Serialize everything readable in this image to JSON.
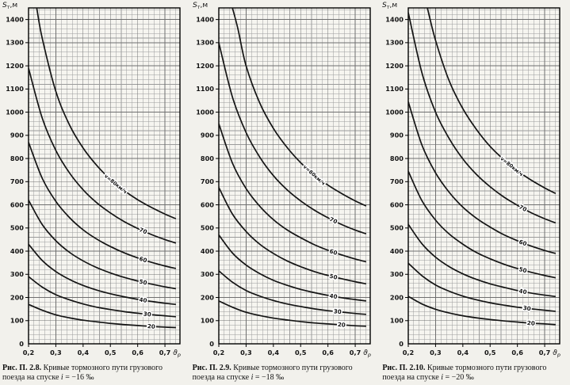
{
  "figure": {
    "background": "#f2f1ec",
    "plot_bg": "#f6f5f0",
    "ink": "#141414",
    "grid_minor": "#9b9b9b",
    "grid_major": "#6f6f6f",
    "border": "#000000"
  },
  "chart_data": [
    {
      "type": "line",
      "title": "",
      "ylabel": "Sт,м",
      "ylabel_parts": {
        "main": "S",
        "sub": "т",
        "rest": ",м"
      },
      "xlabel": "ϑр",
      "xlabel_parts": {
        "main": "ϑ",
        "sub": "р"
      },
      "xlim": [
        0.2,
        0.755
      ],
      "ylim": [
        0,
        1450
      ],
      "grid": {
        "minor_x": 0.02,
        "minor_y": 20
      },
      "xticks": [
        {
          "v": 0.2,
          "label": "0,2"
        },
        {
          "v": 0.3,
          "label": "0,3"
        },
        {
          "v": 0.4,
          "label": "0,4"
        },
        {
          "v": 0.5,
          "label": "0,5"
        },
        {
          "v": 0.6,
          "label": "0,6"
        },
        {
          "v": 0.7,
          "label": "0,7"
        }
      ],
      "yticks": [
        0,
        100,
        200,
        300,
        400,
        500,
        600,
        700,
        800,
        900,
        1000,
        1100,
        1200,
        1300,
        1400
      ],
      "series": [
        {
          "name": "v-80",
          "label": "v=80км/ч",
          "label_x": 0.52,
          "x": [
            0.23,
            0.25,
            0.3,
            0.35,
            0.4,
            0.45,
            0.5,
            0.55,
            0.6,
            0.65,
            0.7,
            0.74
          ],
          "y": [
            1450,
            1320,
            1090,
            945,
            845,
            770,
            710,
            662,
            622,
            589,
            560,
            540
          ]
        },
        {
          "name": "v-70",
          "label": "70",
          "label_x": 0.62,
          "x": [
            0.2,
            0.25,
            0.3,
            0.35,
            0.4,
            0.45,
            0.5,
            0.55,
            0.6,
            0.65,
            0.7,
            0.74
          ],
          "y": [
            1190,
            975,
            835,
            738,
            665,
            609,
            565,
            528,
            498,
            472,
            450,
            435
          ]
        },
        {
          "name": "v-60",
          "label": "60",
          "label_x": 0.62,
          "x": [
            0.2,
            0.25,
            0.3,
            0.35,
            0.4,
            0.45,
            0.5,
            0.55,
            0.6,
            0.65,
            0.7,
            0.74
          ],
          "y": [
            870,
            715,
            615,
            545,
            492,
            452,
            420,
            393,
            371,
            352,
            336,
            325
          ]
        },
        {
          "name": "v-50",
          "label": "50",
          "label_x": 0.62,
          "x": [
            0.2,
            0.25,
            0.3,
            0.35,
            0.4,
            0.45,
            0.5,
            0.55,
            0.6,
            0.65,
            0.7,
            0.74
          ],
          "y": [
            620,
            515,
            445,
            395,
            358,
            329,
            306,
            287,
            271,
            258,
            246,
            238
          ]
        },
        {
          "name": "v-40",
          "label": "40",
          "label_x": 0.62,
          "x": [
            0.2,
            0.25,
            0.3,
            0.35,
            0.4,
            0.45,
            0.5,
            0.55,
            0.6,
            0.65,
            0.7,
            0.74
          ],
          "y": [
            430,
            360,
            312,
            278,
            252,
            232,
            216,
            203,
            192,
            183,
            175,
            170
          ]
        },
        {
          "name": "v-30",
          "label": "30",
          "label_x": 0.635,
          "x": [
            0.2,
            0.25,
            0.3,
            0.35,
            0.4,
            0.45,
            0.5,
            0.55,
            0.6,
            0.65,
            0.7,
            0.74
          ],
          "y": [
            290,
            245,
            212,
            190,
            172,
            158,
            148,
            139,
            132,
            126,
            121,
            117
          ]
        },
        {
          "name": "v-20",
          "label": "20",
          "label_x": 0.65,
          "x": [
            0.2,
            0.25,
            0.3,
            0.35,
            0.4,
            0.45,
            0.5,
            0.55,
            0.6,
            0.65,
            0.7,
            0.74
          ],
          "y": [
            170,
            145,
            125,
            112,
            102,
            95,
            88,
            83,
            79,
            75,
            72,
            70
          ]
        }
      ],
      "caption": {
        "label": "Рис. П. 2.8.",
        "text": "Кривые тормозного пути грузового поезда на спуске",
        "var": "i",
        "value": "= −16 ‰"
      }
    },
    {
      "type": "line",
      "title": "",
      "ylabel": "Sт,м",
      "ylabel_parts": {
        "main": "S",
        "sub": "т",
        "rest": ",м"
      },
      "xlabel": "ϑр",
      "xlabel_parts": {
        "main": "ϑ",
        "sub": "р"
      },
      "xlim": [
        0.2,
        0.755
      ],
      "ylim": [
        0,
        1450
      ],
      "grid": {
        "minor_x": 0.02,
        "minor_y": 20
      },
      "xticks": [
        {
          "v": 0.2,
          "label": "0,2"
        },
        {
          "v": 0.3,
          "label": "0,3"
        },
        {
          "v": 0.4,
          "label": "0,4"
        },
        {
          "v": 0.5,
          "label": "0,5"
        },
        {
          "v": 0.6,
          "label": "0,6"
        },
        {
          "v": 0.7,
          "label": "0,7"
        }
      ],
      "yticks": [
        0,
        100,
        200,
        300,
        400,
        500,
        600,
        700,
        800,
        900,
        1000,
        1100,
        1200,
        1300,
        1400
      ],
      "series": [
        {
          "name": "v-80",
          "label": "v=80км/ч",
          "label_x": 0.55,
          "x": [
            0.25,
            0.27,
            0.3,
            0.35,
            0.4,
            0.45,
            0.5,
            0.55,
            0.6,
            0.65,
            0.7,
            0.74
          ],
          "y": [
            1450,
            1360,
            1200,
            1040,
            930,
            848,
            782,
            729,
            685,
            649,
            617,
            595
          ]
        },
        {
          "name": "v-70",
          "label": "70",
          "label_x": 0.62,
          "x": [
            0.2,
            0.25,
            0.3,
            0.35,
            0.4,
            0.45,
            0.5,
            0.55,
            0.6,
            0.65,
            0.7,
            0.74
          ],
          "y": [
            1300,
            1065,
            912,
            806,
            726,
            665,
            617,
            577,
            544,
            515,
            491,
            475
          ]
        },
        {
          "name": "v-60",
          "label": "60",
          "label_x": 0.62,
          "x": [
            0.2,
            0.25,
            0.3,
            0.35,
            0.4,
            0.45,
            0.5,
            0.55,
            0.6,
            0.65,
            0.7,
            0.74
          ],
          "y": [
            950,
            780,
            670,
            594,
            536,
            492,
            458,
            428,
            404,
            384,
            366,
            354
          ]
        },
        {
          "name": "v-50",
          "label": "50",
          "label_x": 0.62,
          "x": [
            0.2,
            0.25,
            0.3,
            0.35,
            0.4,
            0.45,
            0.5,
            0.55,
            0.6,
            0.65,
            0.7,
            0.74
          ],
          "y": [
            675,
            560,
            485,
            430,
            390,
            358,
            333,
            312,
            295,
            281,
            268,
            259
          ]
        },
        {
          "name": "v-40",
          "label": "40",
          "label_x": 0.62,
          "x": [
            0.2,
            0.25,
            0.3,
            0.35,
            0.4,
            0.45,
            0.5,
            0.55,
            0.6,
            0.65,
            0.7,
            0.74
          ],
          "y": [
            470,
            392,
            340,
            303,
            274,
            253,
            235,
            221,
            209,
            199,
            191,
            185
          ]
        },
        {
          "name": "v-30",
          "label": "30",
          "label_x": 0.635,
          "x": [
            0.2,
            0.25,
            0.3,
            0.35,
            0.4,
            0.45,
            0.5,
            0.55,
            0.6,
            0.65,
            0.7,
            0.74
          ],
          "y": [
            315,
            266,
            230,
            206,
            187,
            172,
            161,
            151,
            143,
            137,
            131,
            127
          ]
        },
        {
          "name": "v-20",
          "label": "20",
          "label_x": 0.65,
          "x": [
            0.2,
            0.25,
            0.3,
            0.35,
            0.4,
            0.45,
            0.5,
            0.55,
            0.6,
            0.65,
            0.7,
            0.74
          ],
          "y": [
            185,
            158,
            136,
            122,
            111,
            103,
            96,
            90,
            86,
            82,
            78,
            76
          ]
        }
      ],
      "caption": {
        "label": "Рис. П. 2.9.",
        "text": "Кривые тормозного пути грузового поезда на спуске",
        "var": "i",
        "value": "= −18 ‰"
      }
    },
    {
      "type": "line",
      "title": "",
      "ylabel": "Sт,м",
      "ylabel_parts": {
        "main": "S",
        "sub": "т",
        "rest": ",м"
      },
      "xlabel": "ϑр",
      "xlabel_parts": {
        "main": "ϑ",
        "sub": "р"
      },
      "xlim": [
        0.2,
        0.755
      ],
      "ylim": [
        0,
        1450
      ],
      "grid": {
        "minor_x": 0.02,
        "minor_y": 20
      },
      "xticks": [
        {
          "v": 0.2,
          "label": "0,2"
        },
        {
          "v": 0.3,
          "label": "0,3"
        },
        {
          "v": 0.4,
          "label": "0,4"
        },
        {
          "v": 0.5,
          "label": "0,5"
        },
        {
          "v": 0.6,
          "label": "0,6"
        },
        {
          "v": 0.7,
          "label": "0,7"
        }
      ],
      "yticks": [
        0,
        100,
        200,
        300,
        400,
        500,
        600,
        700,
        800,
        900,
        1000,
        1100,
        1200,
        1300,
        1400
      ],
      "series": [
        {
          "name": "v-80",
          "label": "v=80км/ч",
          "label_x": 0.58,
          "x": [
            0.27,
            0.3,
            0.35,
            0.4,
            0.45,
            0.5,
            0.55,
            0.6,
            0.65,
            0.7,
            0.74
          ],
          "y": [
            1450,
            1310,
            1135,
            1015,
            925,
            852,
            795,
            747,
            707,
            673,
            649
          ]
        },
        {
          "name": "v-70",
          "label": "70",
          "label_x": 0.62,
          "x": [
            0.2,
            0.25,
            0.3,
            0.35,
            0.4,
            0.45,
            0.5,
            0.55,
            0.6,
            0.65,
            0.7,
            0.74
          ],
          "y": [
            1430,
            1170,
            1000,
            886,
            798,
            731,
            678,
            634,
            598,
            566,
            540,
            522
          ]
        },
        {
          "name": "v-60",
          "label": "60",
          "label_x": 0.62,
          "x": [
            0.2,
            0.25,
            0.3,
            0.35,
            0.4,
            0.45,
            0.5,
            0.55,
            0.6,
            0.65,
            0.7,
            0.74
          ],
          "y": [
            1045,
            858,
            738,
            654,
            590,
            542,
            504,
            471,
            445,
            422,
            403,
            390
          ]
        },
        {
          "name": "v-50",
          "label": "50",
          "label_x": 0.62,
          "x": [
            0.2,
            0.25,
            0.3,
            0.35,
            0.4,
            0.45,
            0.5,
            0.55,
            0.6,
            0.65,
            0.7,
            0.74
          ],
          "y": [
            745,
            618,
            534,
            474,
            430,
            394,
            367,
            344,
            325,
            309,
            295,
            285
          ]
        },
        {
          "name": "v-40",
          "label": "40",
          "label_x": 0.62,
          "x": [
            0.2,
            0.25,
            0.3,
            0.35,
            0.4,
            0.45,
            0.5,
            0.55,
            0.6,
            0.65,
            0.7,
            0.74
          ],
          "y": [
            516,
            432,
            374,
            333,
            302,
            278,
            259,
            244,
            230,
            219,
            210,
            204
          ]
        },
        {
          "name": "v-30",
          "label": "30",
          "label_x": 0.635,
          "x": [
            0.2,
            0.25,
            0.3,
            0.35,
            0.4,
            0.45,
            0.5,
            0.55,
            0.6,
            0.65,
            0.7,
            0.74
          ],
          "y": [
            348,
            294,
            254,
            227,
            206,
            190,
            177,
            167,
            158,
            151,
            145,
            140
          ]
        },
        {
          "name": "v-20",
          "label": "20",
          "label_x": 0.65,
          "x": [
            0.2,
            0.25,
            0.3,
            0.35,
            0.4,
            0.45,
            0.5,
            0.55,
            0.6,
            0.65,
            0.7,
            0.74
          ],
          "y": [
            205,
            172,
            149,
            133,
            121,
            112,
            105,
            99,
            94,
            89,
            86,
            83
          ]
        }
      ],
      "caption": {
        "label": "Рис. П. 2.10.",
        "text": "Кривые тормозного пути грузового поезда на спуске",
        "var": "i",
        "value": "= −20 ‰"
      }
    }
  ]
}
